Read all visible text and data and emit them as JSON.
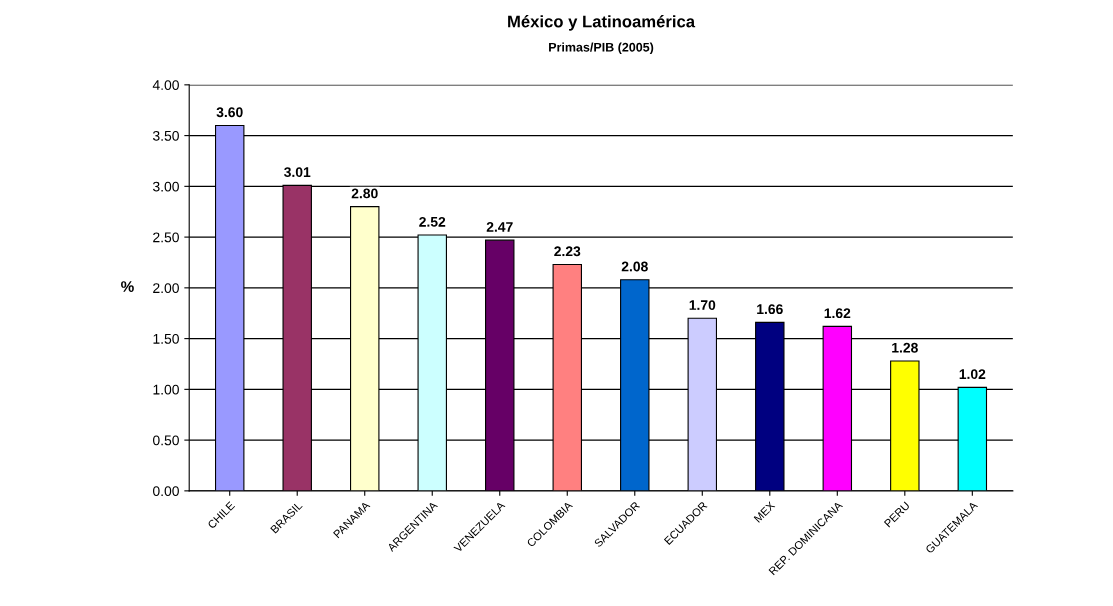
{
  "chart_data": {
    "type": "bar",
    "title": "México y Latinoamérica",
    "subtitle": "Primas/PIB (2005)",
    "ylabel": "%",
    "categories": [
      "CHILE",
      "BRASIL",
      "PANAMA",
      "ARGENTINA",
      "VENEZUELA",
      "COLOMBIA",
      "SALVADOR",
      "ECUADOR",
      "MEX",
      "REP. DOMINICANA",
      "PERU",
      "GUATEMALA"
    ],
    "values": [
      3.6,
      3.01,
      2.8,
      2.52,
      2.47,
      2.23,
      2.08,
      1.7,
      1.66,
      1.62,
      1.28,
      1.02
    ],
    "colors": [
      "#9999ff",
      "#993366",
      "#ffffcc",
      "#ccffff",
      "#660066",
      "#ff8080",
      "#0066cc",
      "#ccccff",
      "#000080",
      "#ff00ff",
      "#ffff00",
      "#00ffff"
    ],
    "ylim": [
      0,
      4
    ],
    "yticks": [
      {
        "value": 0,
        "label": "0.00"
      },
      {
        "value": 0.5,
        "label": "0.50"
      },
      {
        "value": 1,
        "label": "1.00"
      },
      {
        "value": 1.5,
        "label": "1.50"
      },
      {
        "value": 2,
        "label": "2.00"
      },
      {
        "value": 2.5,
        "label": "2.50"
      },
      {
        "value": 3,
        "label": "3.00"
      },
      {
        "value": 3.5,
        "label": "3.50"
      },
      {
        "value": 4,
        "label": "4.00"
      }
    ],
    "value_labels": [
      "3.60",
      "3.01",
      "2.80",
      "2.52",
      "2.47",
      "2.23",
      "2.08",
      "1.70",
      "1.66",
      "1.62",
      "1.28",
      "1.02"
    ],
    "grid": "y"
  }
}
